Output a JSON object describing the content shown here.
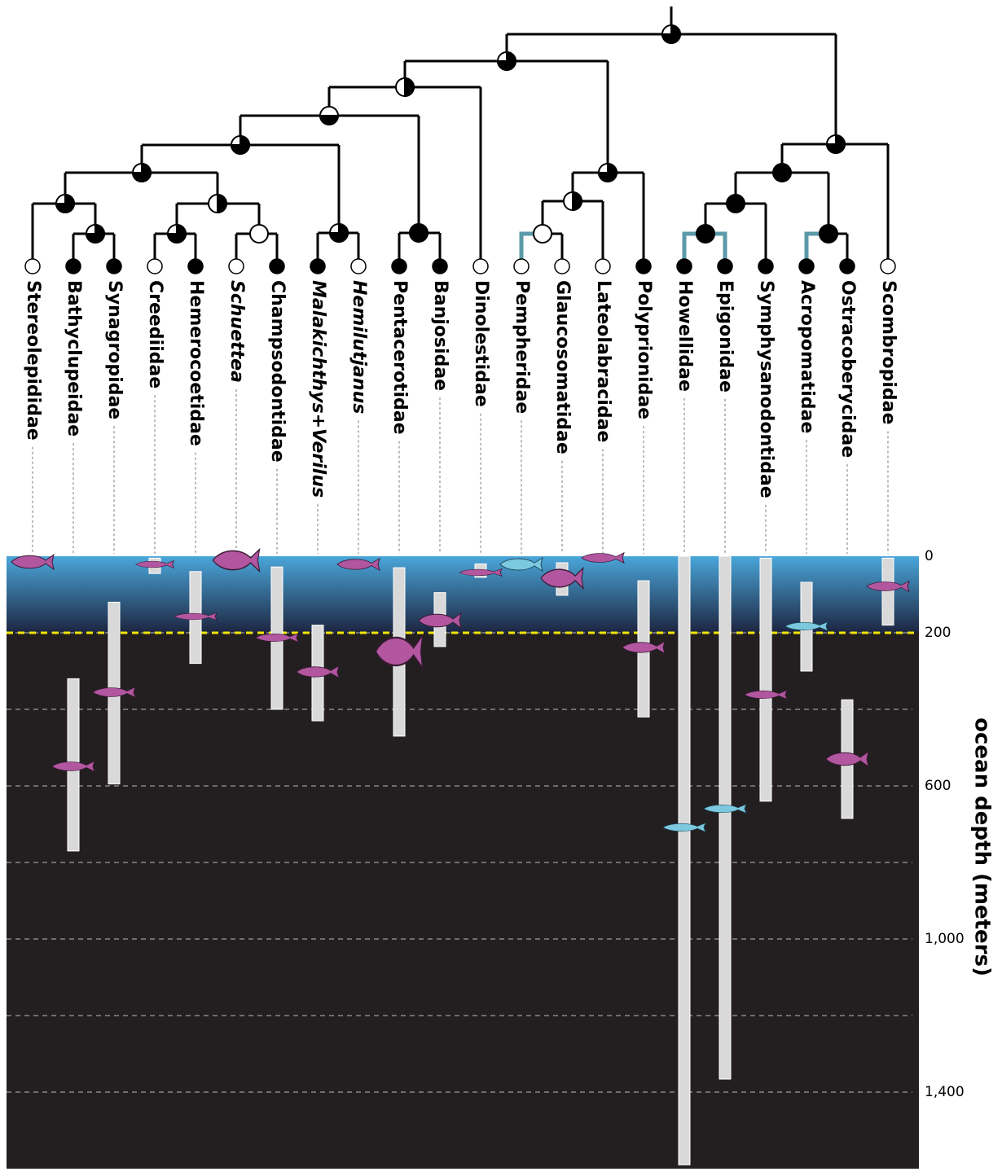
{
  "chart_data": {
    "type": "range",
    "categories": [
      "Stereolepididae",
      "Bathyclupeidae",
      "Synagropidae",
      "Creediidae",
      "Hemerocoetidae",
      "Schuettea",
      "Champsodontidae",
      "Malakichthys+Verilus",
      "Hemilutjanus",
      "Pentacerotidae",
      "Banjosidae",
      "Dinolestidae",
      "Pempheridae",
      "Glaucosomatidae",
      "Lateolabracidae",
      "Polyprionidae",
      "Howellidae",
      "Epigonidae",
      "Symphysanodontidae",
      "Acropomatidae",
      "Ostracoberycidae",
      "Scombropidae"
    ],
    "italic": [
      false,
      false,
      false,
      false,
      false,
      true,
      false,
      true,
      true,
      false,
      false,
      false,
      false,
      false,
      false,
      false,
      false,
      false,
      false,
      false,
      false,
      false
    ],
    "tip_filled": [
      false,
      true,
      true,
      false,
      true,
      false,
      true,
      true,
      false,
      true,
      true,
      false,
      false,
      false,
      false,
      true,
      true,
      true,
      true,
      true,
      true,
      false
    ],
    "low": [
      null,
      320,
      120,
      5,
      40,
      null,
      28,
      180,
      null,
      30,
      95,
      20,
      null,
      17,
      null,
      64,
      0,
      0,
      5,
      68,
      375,
      5
    ],
    "high": [
      null,
      770,
      595,
      45,
      280,
      null,
      400,
      430,
      null,
      470,
      236,
      55,
      null,
      102,
      null,
      420,
      1590,
      1366,
      640,
      300,
      685,
      180
    ],
    "color": "#d9d9d9",
    "ylabel": "ocean depth (meters)",
    "ylim": [
      0,
      1600
    ],
    "yticks": [
      0,
      200,
      600,
      {
        "value": 1000,
        "label": "1,000"
      },
      {
        "value": 1400,
        "label": "1,400"
      }
    ],
    "minor_yticks": [
      400,
      800,
      1200
    ],
    "highlight_depth": 200
  }
}
